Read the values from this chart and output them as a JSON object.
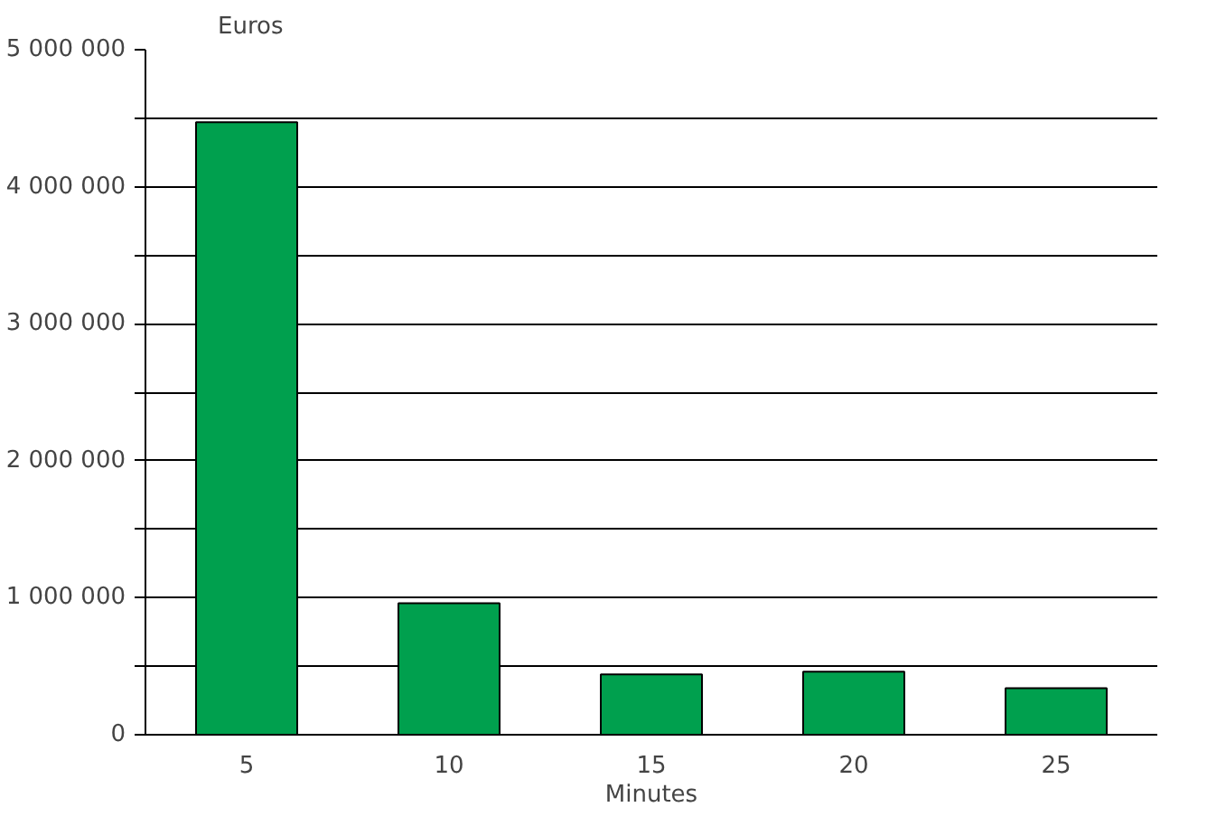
{
  "chart_data": {
    "type": "bar",
    "xlabel": "Minutes",
    "ylabel": "Euros",
    "categories": [
      "5",
      "10",
      "15",
      "20",
      "25"
    ],
    "values": [
      4470000,
      960000,
      440000,
      460000,
      340000
    ],
    "color": "#00a04e",
    "ylim": [
      0,
      5000000
    ],
    "yticks": [
      {
        "value": 0,
        "label": "0"
      },
      {
        "value": 500000,
        "label": null
      },
      {
        "value": 1000000,
        "label": "1 000 000"
      },
      {
        "value": 1500000,
        "label": null
      },
      {
        "value": 2000000,
        "label": "2 000 000"
      },
      {
        "value": 2500000,
        "label": null
      },
      {
        "value": 3000000,
        "label": "3 000 000"
      },
      {
        "value": 3500000,
        "label": null
      },
      {
        "value": 4000000,
        "label": "4 000 000"
      },
      {
        "value": 4500000,
        "label": null
      },
      {
        "value": 5000000,
        "label": "5 000 000"
      }
    ],
    "grid": "y"
  }
}
